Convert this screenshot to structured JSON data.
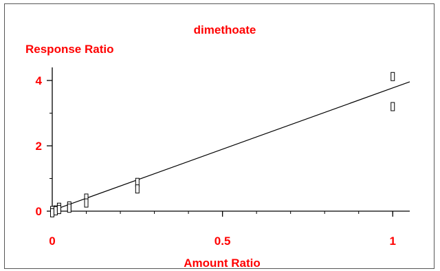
{
  "chart_data": {
    "type": "scatter",
    "title": "dimethoate",
    "xlabel": "Amount Ratio",
    "ylabel": "Response Ratio",
    "xlim": [
      0,
      1.05
    ],
    "ylim": [
      0,
      4.4
    ],
    "xticks": [
      0,
      0.5,
      1
    ],
    "xtick_labels": [
      "0",
      "0.5",
      "1"
    ],
    "yticks": [
      0,
      2,
      4
    ],
    "ytick_labels": [
      "0",
      "2",
      "4"
    ],
    "x_minor_step": 0.1,
    "y_minor_step": 1,
    "grid": false,
    "label_color": "#ff0000",
    "series": [
      {
        "marker": "open-square",
        "points": [
          {
            "x": 0,
            "y": 0.02
          },
          {
            "x": 0,
            "y": -0.05
          },
          {
            "x": 0.01,
            "y": 0.04
          },
          {
            "x": 0.01,
            "y": 0.01
          },
          {
            "x": 0.02,
            "y": 0.12
          },
          {
            "x": 0.02,
            "y": 0.05
          },
          {
            "x": 0.05,
            "y": 0.16
          },
          {
            "x": 0.05,
            "y": 0.09
          },
          {
            "x": 0.1,
            "y": 0.4
          },
          {
            "x": 0.1,
            "y": 0.25
          },
          {
            "x": 0.25,
            "y": 0.88
          },
          {
            "x": 0.25,
            "y": 0.68
          },
          {
            "x": 1,
            "y": 4.12
          },
          {
            "x": 1,
            "y": 3.2
          }
        ]
      }
    ],
    "fit_line": {
      "from": [
        0,
        0.02
      ],
      "to": [
        1.05,
        3.96
      ]
    }
  }
}
